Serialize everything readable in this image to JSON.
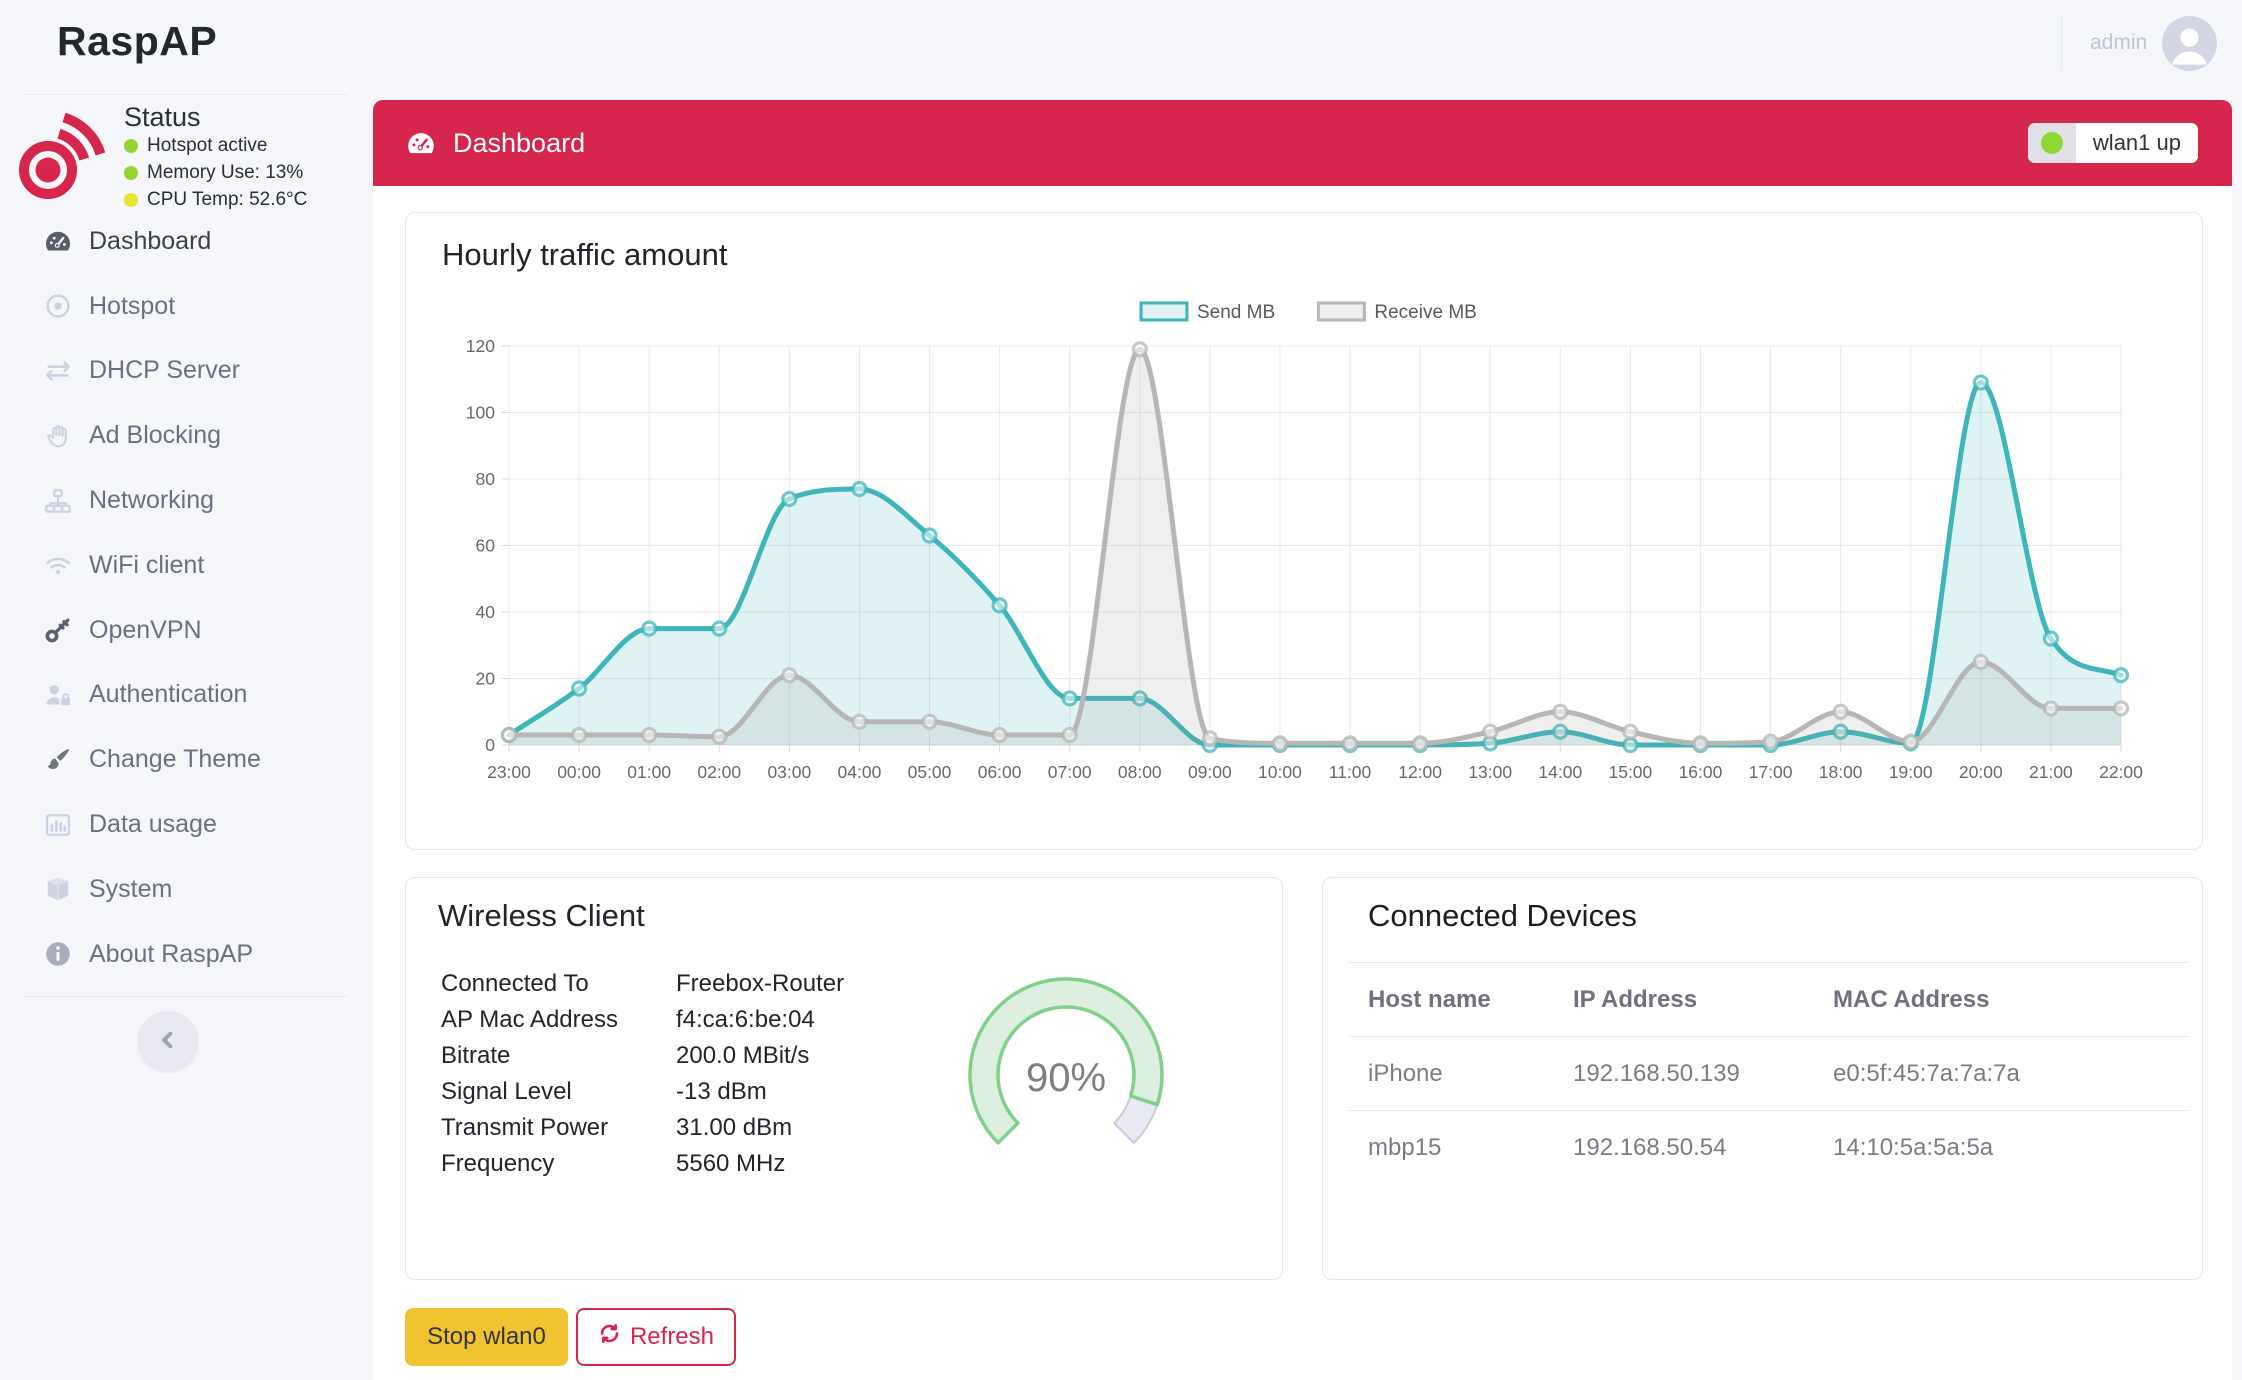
{
  "brand": {
    "name": "RaspAP"
  },
  "topbar": {
    "user": "admin"
  },
  "status": {
    "title": "Status",
    "items": [
      {
        "label": "Hotspot active",
        "dot_color": "#95d52e"
      },
      {
        "label": "Memory Use: 13%",
        "dot_color": "#95d52e"
      },
      {
        "label": "CPU Temp: 52.6°C",
        "dot_color": "#e3e42e"
      }
    ]
  },
  "sidebar": {
    "items": [
      {
        "label": "Dashboard",
        "icon": "tachometer-icon",
        "active": true,
        "icon_color": "#5a5c69"
      },
      {
        "label": "Hotspot",
        "icon": "bullseye-icon"
      },
      {
        "label": "DHCP Server",
        "icon": "exchange-icon"
      },
      {
        "label": "Ad Blocking",
        "icon": "hand-icon"
      },
      {
        "label": "Networking",
        "icon": "sitemap-icon"
      },
      {
        "label": "WiFi client",
        "icon": "wifi-icon"
      },
      {
        "label": "OpenVPN",
        "icon": "key-icon",
        "icon_color": "#5d5f6e"
      },
      {
        "label": "Authentication",
        "icon": "user-lock-icon"
      },
      {
        "label": "Change Theme",
        "icon": "brush-icon",
        "icon_color": "#73757f"
      },
      {
        "label": "Data usage",
        "icon": "chart-bar-icon"
      },
      {
        "label": "System",
        "icon": "cube-icon"
      },
      {
        "label": "About RaspAP",
        "icon": "info-circle-icon",
        "icon_color": "#a9acbc"
      }
    ]
  },
  "header": {
    "title": "Dashboard",
    "badge": {
      "label": "wlan1 up",
      "dot_color": "#8ed633"
    }
  },
  "chart_data": {
    "type": "area",
    "title": "Hourly traffic amount",
    "x": [
      "23:00",
      "00:00",
      "01:00",
      "02:00",
      "03:00",
      "04:00",
      "05:00",
      "06:00",
      "07:00",
      "08:00",
      "09:00",
      "10:00",
      "11:00",
      "12:00",
      "13:00",
      "14:00",
      "15:00",
      "16:00",
      "17:00",
      "18:00",
      "19:00",
      "20:00",
      "21:00",
      "22:00"
    ],
    "series": [
      {
        "name": "Send MB",
        "color": "#3db5b9",
        "fill": "rgba(61,181,185,0.16)",
        "values": [
          3,
          17,
          35,
          35,
          74,
          77,
          63,
          42,
          14,
          14,
          0,
          0,
          0,
          0,
          0.5,
          4,
          0,
          0,
          0,
          4,
          0.5,
          109,
          32,
          21
        ]
      },
      {
        "name": "Receive MB",
        "color": "#b6b6b6",
        "fill": "rgba(150,150,150,0.15)",
        "values": [
          3,
          3,
          3,
          2.5,
          21,
          7,
          7,
          3,
          3,
          119,
          2,
          0.5,
          0.5,
          0.5,
          4,
          10,
          4,
          0.5,
          1,
          10,
          1,
          25,
          11,
          11
        ]
      }
    ],
    "ylabel": "",
    "xlabel": "",
    "ylim": [
      0,
      120
    ],
    "yticks": [
      0,
      20,
      40,
      60,
      80,
      100,
      120
    ],
    "legend_position": "top-center",
    "grid": true
  },
  "wireless_client": {
    "title": "Wireless Client",
    "rows": [
      {
        "label": "Connected To",
        "value": "Freebox-Router"
      },
      {
        "label": "AP Mac Address",
        "value": "f4:ca:6:be:04"
      },
      {
        "label": "Bitrate",
        "value": "200.0 MBit/s"
      },
      {
        "label": "Signal Level",
        "value": "-13 dBm"
      },
      {
        "label": "Transmit Power",
        "value": "31.00 dBm"
      },
      {
        "label": "Frequency",
        "value": "5560 MHz"
      }
    ],
    "gauge": {
      "label": "90%",
      "percent": 90,
      "arc_color": "#7fd08a",
      "arc_fill": "#ddefde",
      "rest_color": "#c9cbd8",
      "rest_fill": "#e9e9f4"
    }
  },
  "connected_devices": {
    "title": "Connected Devices",
    "columns": [
      "Host name",
      "IP Address",
      "MAC Address"
    ],
    "rows": [
      [
        "iPhone",
        "192.168.50.139",
        "e0:5f:45:7a:7a:7a"
      ],
      [
        "mbp15",
        "192.168.50.54",
        "14:10:5a:5a:5a"
      ]
    ]
  },
  "actions": {
    "stop_label": "Stop wlan0",
    "refresh_label": "Refresh"
  },
  "colors": {
    "primary": "#d6264d",
    "warning": "#f0c331",
    "sidebar_bg": "#f6f7fb",
    "card_border": "#e3e6f0"
  }
}
